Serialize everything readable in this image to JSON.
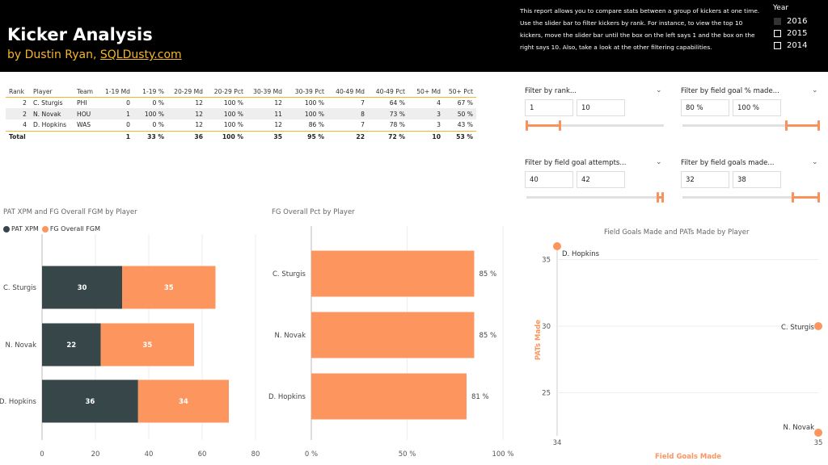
{
  "header": {
    "title": "Kicker Analysis",
    "byline_prefix": "by Dustin Ryan,",
    "byline_link": "SQLDusty.com",
    "description": "This report allows you to compare stats between a group of kickers at one time. Use the slider bar to filter kickers by rank. For instance, to view the top 10 kickers, move the slider bar until the box on the left says 1 and the box on the right says 10. Also, take a look at the other filtering capabilities.",
    "year_label": "Year",
    "years": [
      {
        "label": "2016",
        "checked": true
      },
      {
        "label": "2015",
        "checked": false
      },
      {
        "label": "2014",
        "checked": false
      }
    ]
  },
  "table": {
    "columns": [
      "Rank",
      "Player",
      "Team",
      "1-19 Md",
      "1-19 %",
      "20-29 Md",
      "20-29 Pct",
      "30-39 Md",
      "30-39 Pct",
      "40-49 Md",
      "40-49 Pct",
      "50+ Md",
      "50+ Pct"
    ],
    "rows": [
      [
        "2",
        "C. Sturgis",
        "PHI",
        "0",
        "0 %",
        "12",
        "100 %",
        "12",
        "100 %",
        "7",
        "64 %",
        "4",
        "67 %"
      ],
      [
        "2",
        "N. Novak",
        "HOU",
        "1",
        "100 %",
        "12",
        "100 %",
        "11",
        "100 %",
        "8",
        "73 %",
        "3",
        "50 %"
      ],
      [
        "4",
        "D. Hopkins",
        "WAS",
        "0",
        "0 %",
        "12",
        "100 %",
        "12",
        "86 %",
        "7",
        "78 %",
        "3",
        "43 %"
      ]
    ],
    "total": [
      "Total",
      "",
      "",
      "1",
      "33 %",
      "36",
      "100 %",
      "35",
      "95 %",
      "22",
      "72 %",
      "10",
      "53 %"
    ]
  },
  "filters": {
    "rank": {
      "title": "Filter by rank...",
      "min": "1",
      "max": "10",
      "low": 0.0,
      "high": 0.25
    },
    "fg_pct": {
      "title": "Filter by field goal % made...",
      "min": "80 %",
      "max": "100 %",
      "low": 0.75,
      "high": 1.0
    },
    "attempts": {
      "title": "Filter by field goal attempts...",
      "min": "40",
      "max": "42",
      "low": 0.95,
      "high": 1.0
    },
    "made": {
      "title": "Filter by field goals made...",
      "min": "32",
      "max": "38",
      "low": 0.8,
      "high": 1.0
    }
  },
  "chart_data": [
    {
      "type": "bar",
      "orientation": "horizontal",
      "stacked": true,
      "title": "PAT XPM and FG Overall FGM by Player",
      "categories": [
        "C. Sturgis",
        "N. Novak",
        "D. Hopkins"
      ],
      "series": [
        {
          "name": "PAT XPM",
          "values": [
            30,
            22,
            36
          ],
          "color": "#374649"
        },
        {
          "name": "FG Overall FGM",
          "values": [
            35,
            35,
            34
          ],
          "color": "#fd955f"
        }
      ],
      "xlim": [
        0,
        80
      ],
      "xticks": [
        "0",
        "20",
        "40",
        "60",
        "80"
      ],
      "legend": "top-left"
    },
    {
      "type": "bar",
      "orientation": "horizontal",
      "title": "FG Overall Pct by Player",
      "categories": [
        "C. Sturgis",
        "N. Novak",
        "D. Hopkins"
      ],
      "values": [
        85,
        85,
        81
      ],
      "labels": [
        "85 %",
        "85 %",
        "81 %"
      ],
      "color": "#fd955f",
      "xlim": [
        0,
        100
      ],
      "xticks": [
        "0 %",
        "50 %",
        "100 %"
      ]
    },
    {
      "type": "scatter",
      "title": "Field Goals Made and PATs Made by Player",
      "xlabel": "Field Goals Made",
      "ylabel": "PATs Made",
      "points": [
        {
          "name": "D. Hopkins",
          "x": 34,
          "y": 36
        },
        {
          "name": "C. Sturgis",
          "x": 35,
          "y": 30
        },
        {
          "name": "N. Novak",
          "x": 35,
          "y": 22
        }
      ],
      "xlim": [
        34,
        35
      ],
      "ylim": [
        22,
        36
      ],
      "xticks": [
        "34",
        "35"
      ],
      "yticks": [
        "35",
        "30",
        "25"
      ],
      "color": "#fd955f"
    }
  ]
}
